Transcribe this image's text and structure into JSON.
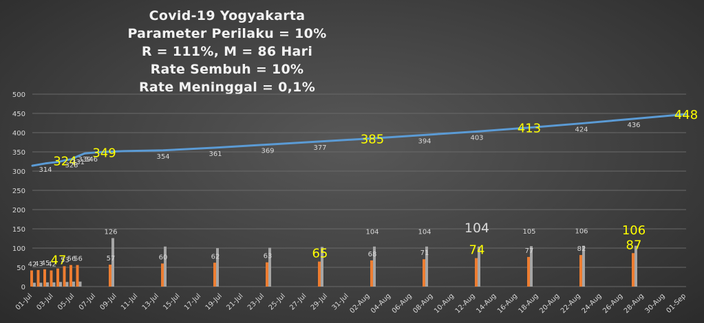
{
  "title_lines": [
    "Covid-19 Yogyakarta",
    "Parameter Perilaku = 10%",
    "R = 111%, M = 86 Hari",
    "Rate Sembuh = 10%",
    "Rate Meninggal = 0,1%"
  ],
  "chart_data": {
    "type": "line+bar",
    "y_ticks": [
      0,
      50,
      100,
      150,
      200,
      250,
      300,
      350,
      400,
      450,
      500
    ],
    "ylim": [
      0,
      500
    ],
    "grid": true,
    "x_tick_labels": [
      "01-Jul",
      "03-Jul",
      "05-Jul",
      "07-Jul",
      "09-Jul",
      "11-Jul",
      "13-Jul",
      "15-Jul",
      "17-Jul",
      "19-Jul",
      "21-Jul",
      "23-Jul",
      "25-Jul",
      "27-Jul",
      "29-Jul",
      "31-Jul",
      "02-Aug",
      "04-Aug",
      "06-Aug",
      "08-Aug",
      "10-Aug",
      "12-Aug",
      "14-Aug",
      "16-Aug",
      "18-Aug",
      "20-Aug",
      "22-Aug",
      "24-Aug",
      "26-Aug",
      "28-Aug",
      "30-Aug",
      "01-Sep"
    ],
    "line_series": {
      "color": "#5b9bd5",
      "points": [
        [
          0,
          314
        ],
        [
          2,
          320
        ],
        [
          4,
          324
        ],
        [
          5,
          328
        ],
        [
          6,
          331
        ],
        [
          7,
          339
        ],
        [
          8,
          346
        ],
        [
          10,
          349
        ],
        [
          14,
          352
        ],
        [
          20,
          354
        ],
        [
          28,
          361
        ],
        [
          36,
          369
        ],
        [
          44,
          377
        ],
        [
          52,
          385
        ],
        [
          60,
          394
        ],
        [
          68,
          403
        ],
        [
          76,
          413
        ],
        [
          84,
          424
        ],
        [
          92,
          436
        ],
        [
          100,
          448
        ]
      ],
      "labels": [
        {
          "day": 2,
          "value": "314",
          "highlight": false
        },
        {
          "day": 5,
          "value": "324",
          "highlight": true
        },
        {
          "day": 6,
          "value": "328",
          "highlight": false
        },
        {
          "day": 7,
          "value": "331",
          "highlight": false
        },
        {
          "day": 8,
          "value": "339",
          "highlight": false
        },
        {
          "day": 9,
          "value": "346",
          "highlight": false
        },
        {
          "day": 11,
          "value": "349",
          "highlight": true
        },
        {
          "day": 20,
          "value": "354",
          "highlight": false
        },
        {
          "day": 28,
          "value": "361",
          "highlight": false
        },
        {
          "day": 36,
          "value": "369",
          "highlight": false
        },
        {
          "day": 44,
          "value": "377",
          "highlight": false
        },
        {
          "day": 52,
          "value": "385",
          "highlight": true
        },
        {
          "day": 60,
          "value": "394",
          "highlight": false
        },
        {
          "day": 68,
          "value": "403",
          "highlight": false
        },
        {
          "day": 76,
          "value": "413",
          "highlight": true
        },
        {
          "day": 84,
          "value": "424",
          "highlight": false
        },
        {
          "day": 92,
          "value": "436",
          "highlight": false
        },
        {
          "day": 100,
          "value": "448",
          "highlight": true
        }
      ]
    },
    "bar_series": [
      {
        "color": "#ed7d31",
        "values": [
          {
            "day": 0,
            "value": 42
          },
          {
            "day": 1,
            "value": 43
          },
          {
            "day": 2,
            "value": 45
          },
          {
            "day": 3,
            "value": 42
          },
          {
            "day": 4,
            "value": 47
          },
          {
            "day": 5,
            "value": 53
          },
          {
            "day": 6,
            "value": 56
          },
          {
            "day": 7,
            "value": 56
          },
          {
            "day": 12,
            "value": 57
          },
          {
            "day": 20,
            "value": 60
          },
          {
            "day": 28,
            "value": 62
          },
          {
            "day": 36,
            "value": 63
          },
          {
            "day": 44,
            "value": 65
          },
          {
            "day": 52,
            "value": 68
          },
          {
            "day": 60,
            "value": 71
          },
          {
            "day": 68,
            "value": 74
          },
          {
            "day": 76,
            "value": 77
          },
          {
            "day": 84,
            "value": 82
          },
          {
            "day": 92,
            "value": 87
          }
        ]
      },
      {
        "color": "#a5a5a5",
        "values": [
          {
            "day": 0,
            "value": 10
          },
          {
            "day": 1,
            "value": 10
          },
          {
            "day": 2,
            "value": 11
          },
          {
            "day": 3,
            "value": 11
          },
          {
            "day": 4,
            "value": 12
          },
          {
            "day": 5,
            "value": 12
          },
          {
            "day": 6,
            "value": 13
          },
          {
            "day": 7,
            "value": 13
          },
          {
            "day": 12,
            "value": 126
          },
          {
            "day": 20,
            "value": 104
          },
          {
            "day": 28,
            "value": 100
          },
          {
            "day": 36,
            "value": 101
          },
          {
            "day": 44,
            "value": 103
          },
          {
            "day": 52,
            "value": 104
          },
          {
            "day": 60,
            "value": 104
          },
          {
            "day": 68,
            "value": 104
          },
          {
            "day": 76,
            "value": 105
          },
          {
            "day": 84,
            "value": 106
          },
          {
            "day": 92,
            "value": 106
          }
        ]
      }
    ],
    "bar_labels": [
      {
        "day": 0,
        "value": "42",
        "style": "normal",
        "yv": 42
      },
      {
        "day": 1,
        "value": "43",
        "style": "normal",
        "yv": 43
      },
      {
        "day": 2,
        "value": "45",
        "style": "normal",
        "yv": 45
      },
      {
        "day": 3,
        "value": "42",
        "style": "normal",
        "yv": 42
      },
      {
        "day": 4,
        "value": "47",
        "style": "yellow",
        "yv": 47
      },
      {
        "day": 5,
        "value": "53",
        "style": "normal",
        "yv": 53
      },
      {
        "day": 6,
        "value": "56",
        "style": "normal",
        "yv": 56
      },
      {
        "day": 7,
        "value": "56",
        "style": "normal",
        "yv": 56
      },
      {
        "day": 12,
        "value": "57",
        "style": "normal",
        "yv": 57
      },
      {
        "day": 12,
        "value": "126",
        "style": "normal",
        "yv": 126
      },
      {
        "day": 20,
        "value": "60",
        "style": "normal",
        "yv": 60
      },
      {
        "day": 28,
        "value": "62",
        "style": "normal",
        "yv": 62
      },
      {
        "day": 36,
        "value": "63",
        "style": "normal",
        "yv": 63
      },
      {
        "day": 44,
        "value": "65",
        "style": "yellow",
        "yv": 65
      },
      {
        "day": 52,
        "value": "68",
        "style": "normal",
        "yv": 68
      },
      {
        "day": 52,
        "value": "104",
        "style": "normal",
        "yv": 126
      },
      {
        "day": 60,
        "value": "71",
        "style": "normal",
        "yv": 71
      },
      {
        "day": 60,
        "value": "104",
        "style": "normal",
        "yv": 126
      },
      {
        "day": 68,
        "value": "74",
        "style": "yellow",
        "yv": 74
      },
      {
        "day": 68,
        "value": "104",
        "style": "big",
        "yv": 130
      },
      {
        "day": 76,
        "value": "77",
        "style": "normal",
        "yv": 77
      },
      {
        "day": 76,
        "value": "105",
        "style": "normal",
        "yv": 127
      },
      {
        "day": 84,
        "value": "82",
        "style": "normal",
        "yv": 82
      },
      {
        "day": 84,
        "value": "106",
        "style": "normal",
        "yv": 128
      },
      {
        "day": 92,
        "value": "87",
        "style": "yellow",
        "yv": 87
      },
      {
        "day": 92,
        "value": "106",
        "style": "yellow",
        "yv": 125
      }
    ]
  }
}
